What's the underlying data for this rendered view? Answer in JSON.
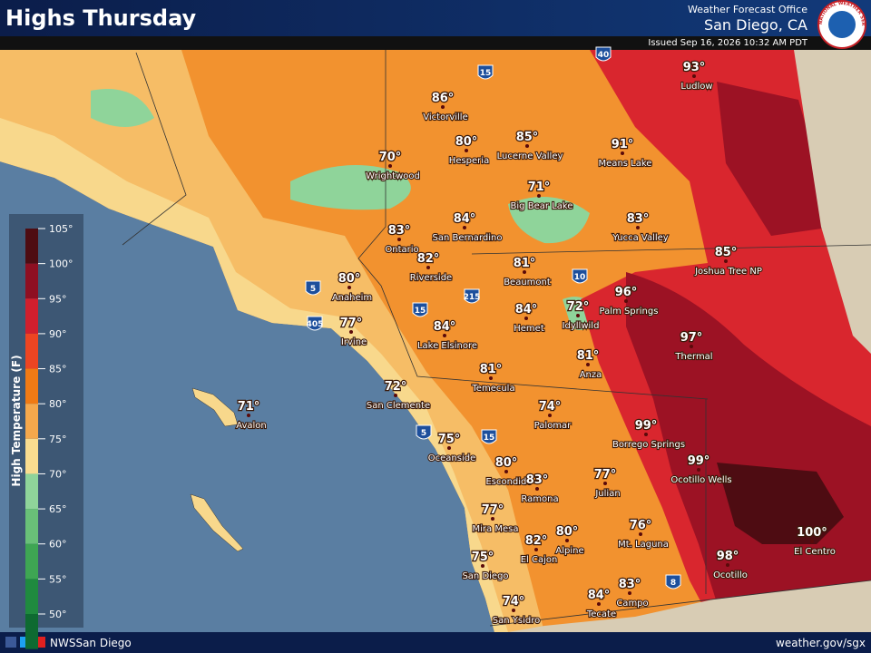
{
  "header": {
    "title": "Highs Thursday",
    "office": "Weather Forecast Office",
    "location": "San Diego, CA",
    "issued": "Issued Sep 16, 2026 10:32 AM PDT",
    "logo_text": "NATIONAL WEATHER SERVICE"
  },
  "legend": {
    "title": "High Temperature (F)",
    "ticks": [
      "105°",
      "100°",
      "95°",
      "90°",
      "85°",
      "80°",
      "75°",
      "70°",
      "65°",
      "60°",
      "55°",
      "50°"
    ],
    "colors": [
      "#4e0c12",
      "#8e0f22",
      "#d11f2d",
      "#ec4522",
      "#f07a14",
      "#f5a84c",
      "#f9dc8f",
      "#8fd49a",
      "#69c078",
      "#3ea553",
      "#1f8a3f",
      "#0e6a31"
    ]
  },
  "cities": [
    {
      "name": "Ludlow",
      "temp": "93°"
    },
    {
      "name": "Victorville",
      "temp": "86°"
    },
    {
      "name": "Hesperia",
      "temp": "80°"
    },
    {
      "name": "Lucerne Valley",
      "temp": "85°"
    },
    {
      "name": "Means Lake",
      "temp": "91°"
    },
    {
      "name": "Wrightwood",
      "temp": "70°"
    },
    {
      "name": "Big Bear Lake",
      "temp": "71°"
    },
    {
      "name": "Yucca Valley",
      "temp": "83°"
    },
    {
      "name": "Joshua Tree NP",
      "temp": "85°"
    },
    {
      "name": "San Bernardino",
      "temp": "84°"
    },
    {
      "name": "Ontario",
      "temp": "83°"
    },
    {
      "name": "Riverside",
      "temp": "82°"
    },
    {
      "name": "Beaumont",
      "temp": "81°"
    },
    {
      "name": "Palm Springs",
      "temp": "96°"
    },
    {
      "name": "Anaheim",
      "temp": "80°"
    },
    {
      "name": "Irvine",
      "temp": "77°"
    },
    {
      "name": "Hemet",
      "temp": "84°"
    },
    {
      "name": "Idyllwild",
      "temp": "72°"
    },
    {
      "name": "Lake Elsinore",
      "temp": "84°"
    },
    {
      "name": "Thermal",
      "temp": "97°"
    },
    {
      "name": "Anza",
      "temp": "81°"
    },
    {
      "name": "Temecula",
      "temp": "81°"
    },
    {
      "name": "San Clemente",
      "temp": "72°"
    },
    {
      "name": "Avalon",
      "temp": "71°"
    },
    {
      "name": "Palomar",
      "temp": "74°"
    },
    {
      "name": "Borrego Springs",
      "temp": "99°"
    },
    {
      "name": "Oceanside",
      "temp": "75°"
    },
    {
      "name": "Ocotillo Wells",
      "temp": "99°"
    },
    {
      "name": "Escondido",
      "temp": "80°"
    },
    {
      "name": "Ramona",
      "temp": "83°"
    },
    {
      "name": "Julian",
      "temp": "77°"
    },
    {
      "name": "Mira Mesa",
      "temp": "77°"
    },
    {
      "name": "Alpine",
      "temp": "80°"
    },
    {
      "name": "Mt. Laguna",
      "temp": "76°"
    },
    {
      "name": "El Centro",
      "temp": "100°"
    },
    {
      "name": "El Cajon",
      "temp": "82°"
    },
    {
      "name": "San Diego",
      "temp": "75°"
    },
    {
      "name": "Ocotillo",
      "temp": "98°"
    },
    {
      "name": "Campo",
      "temp": "83°"
    },
    {
      "name": "Tecate",
      "temp": "84°"
    },
    {
      "name": "San Ysidro",
      "temp": "74°"
    }
  ],
  "shields": [
    "15",
    "40",
    "5",
    "405",
    "15",
    "215",
    "10",
    "5",
    "15",
    "8"
  ],
  "footer": {
    "social": "NWSSan Diego",
    "url": "weather.gov/sgx"
  }
}
